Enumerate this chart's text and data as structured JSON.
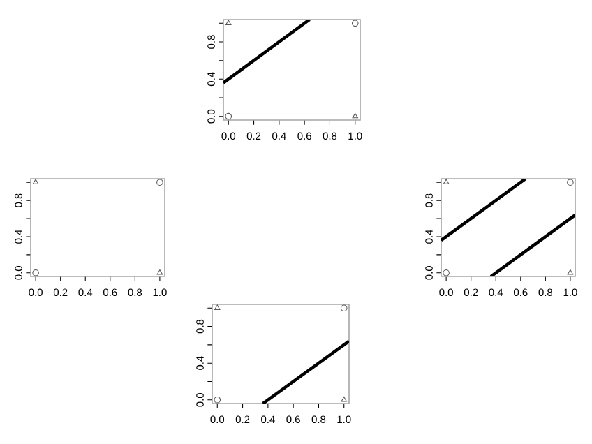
{
  "chart_data": [
    {
      "type": "scatter",
      "xlim": [
        -0.04,
        1.04
      ],
      "ylim": [
        -0.04,
        1.04
      ],
      "xticks": [
        {
          "value": 0,
          "label": "0.0"
        },
        {
          "value": 0.2,
          "label": "0.2"
        },
        {
          "value": 0.4,
          "label": "0.4"
        },
        {
          "value": 0.6,
          "label": "0.6"
        },
        {
          "value": 0.8,
          "label": "0.8"
        },
        {
          "value": 1,
          "label": "1.0"
        }
      ],
      "yticks": [
        {
          "value": 0,
          "label": "0.0"
        },
        {
          "value": 0.2,
          "label": null
        },
        {
          "value": 0.4,
          "label": "0.4"
        },
        {
          "value": 0.6,
          "label": null
        },
        {
          "value": 0.8,
          "label": "0.8"
        },
        {
          "value": 1,
          "label": null
        }
      ],
      "series": [
        {
          "marker": "circle",
          "color": "#555555",
          "x": [
            0,
            1
          ],
          "values": [
            0,
            1
          ]
        },
        {
          "marker": "triangle",
          "color": "#555555",
          "x": [
            0,
            1
          ],
          "values": [
            1,
            0
          ]
        },
        {
          "type": "line",
          "color": "#000000",
          "x": [
            -0.04,
            0.64
          ],
          "values": [
            0.36,
            1.04
          ]
        }
      ]
    },
    {
      "type": "scatter",
      "xlim": [
        -0.04,
        1.04
      ],
      "ylim": [
        -0.04,
        1.04
      ],
      "xticks": [
        {
          "value": 0,
          "label": "0.0"
        },
        {
          "value": 0.2,
          "label": "0.2"
        },
        {
          "value": 0.4,
          "label": "0.4"
        },
        {
          "value": 0.6,
          "label": "0.6"
        },
        {
          "value": 0.8,
          "label": "0.8"
        },
        {
          "value": 1,
          "label": "1.0"
        }
      ],
      "yticks": [
        {
          "value": 0,
          "label": "0.0"
        },
        {
          "value": 0.2,
          "label": null
        },
        {
          "value": 0.4,
          "label": "0.4"
        },
        {
          "value": 0.6,
          "label": null
        },
        {
          "value": 0.8,
          "label": "0.8"
        },
        {
          "value": 1,
          "label": null
        }
      ],
      "series": [
        {
          "marker": "circle",
          "color": "#555555",
          "x": [
            0,
            1
          ],
          "values": [
            0,
            1
          ]
        },
        {
          "marker": "triangle",
          "color": "#555555",
          "x": [
            0,
            1
          ],
          "values": [
            1,
            0
          ]
        }
      ]
    },
    {
      "type": "scatter",
      "xlim": [
        -0.04,
        1.04
      ],
      "ylim": [
        -0.04,
        1.04
      ],
      "xticks": [
        {
          "value": 0,
          "label": "0.0"
        },
        {
          "value": 0.2,
          "label": "0.2"
        },
        {
          "value": 0.4,
          "label": "0.4"
        },
        {
          "value": 0.6,
          "label": "0.6"
        },
        {
          "value": 0.8,
          "label": "0.8"
        },
        {
          "value": 1,
          "label": "1.0"
        }
      ],
      "yticks": [
        {
          "value": 0,
          "label": "0.0"
        },
        {
          "value": 0.2,
          "label": null
        },
        {
          "value": 0.4,
          "label": "0.4"
        },
        {
          "value": 0.6,
          "label": null
        },
        {
          "value": 0.8,
          "label": "0.8"
        },
        {
          "value": 1,
          "label": null
        }
      ],
      "series": [
        {
          "marker": "circle",
          "color": "#555555",
          "x": [
            0,
            1
          ],
          "values": [
            0,
            1
          ]
        },
        {
          "marker": "triangle",
          "color": "#555555",
          "x": [
            0,
            1
          ],
          "values": [
            1,
            0
          ]
        },
        {
          "type": "line",
          "color": "#000000",
          "x": [
            -0.04,
            0.64
          ],
          "values": [
            0.36,
            1.04
          ]
        },
        {
          "type": "line",
          "color": "#000000",
          "x": [
            0.36,
            1.04
          ],
          "values": [
            -0.04,
            0.64
          ]
        }
      ]
    },
    {
      "type": "scatter",
      "xlim": [
        -0.04,
        1.04
      ],
      "ylim": [
        -0.04,
        1.04
      ],
      "xticks": [
        {
          "value": 0,
          "label": "0.0"
        },
        {
          "value": 0.2,
          "label": "0.2"
        },
        {
          "value": 0.4,
          "label": "0.4"
        },
        {
          "value": 0.6,
          "label": "0.6"
        },
        {
          "value": 0.8,
          "label": "0.8"
        },
        {
          "value": 1,
          "label": "1.0"
        }
      ],
      "yticks": [
        {
          "value": 0,
          "label": "0.0"
        },
        {
          "value": 0.2,
          "label": null
        },
        {
          "value": 0.4,
          "label": "0.4"
        },
        {
          "value": 0.6,
          "label": null
        },
        {
          "value": 0.8,
          "label": "0.8"
        },
        {
          "value": 1,
          "label": null
        }
      ],
      "series": [
        {
          "marker": "circle",
          "color": "#555555",
          "x": [
            0,
            1
          ],
          "values": [
            0,
            1
          ]
        },
        {
          "marker": "triangle",
          "color": "#555555",
          "x": [
            0,
            1
          ],
          "values": [
            1,
            0
          ]
        },
        {
          "type": "line",
          "color": "#000000",
          "x": [
            0.36,
            1.04
          ],
          "values": [
            -0.04,
            0.64
          ]
        }
      ]
    }
  ]
}
